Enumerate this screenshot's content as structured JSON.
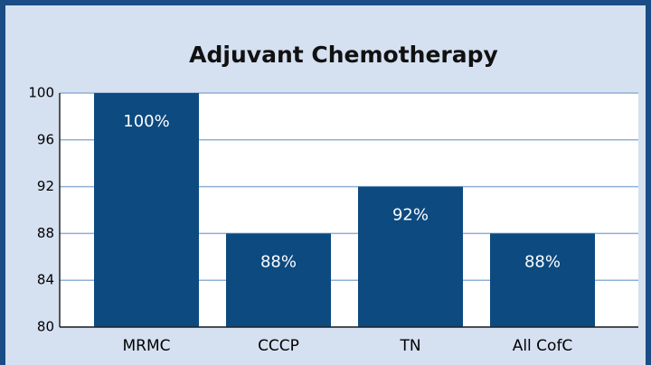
{
  "chart_data": {
    "type": "bar",
    "title": "Adjuvant Chemotherapy",
    "categories": [
      "MRMC",
      "CCCP",
      "TN",
      "All CofC"
    ],
    "values": [
      100,
      88,
      92,
      88
    ],
    "value_labels": [
      "100%",
      "88%",
      "92%",
      "88%"
    ],
    "color": "#0d4a80",
    "ylim": [
      80,
      100
    ],
    "yticks": [
      80,
      84,
      88,
      92,
      96,
      100
    ],
    "grid": true
  }
}
